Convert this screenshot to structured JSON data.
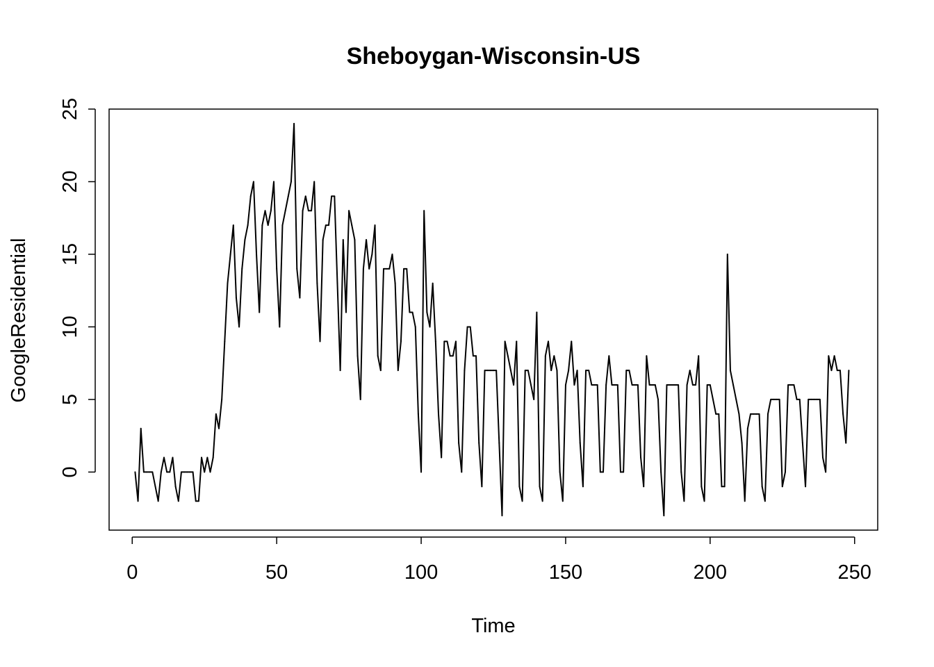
{
  "chart_data": {
    "type": "line",
    "title": "Sheboygan-Wisconsin-US",
    "xlabel": "Time",
    "ylabel": "GoogleResidential",
    "xlim": [
      -8,
      258
    ],
    "ylim": [
      -4,
      25
    ],
    "x_ticks": [
      0,
      50,
      100,
      150,
      200,
      250
    ],
    "y_ticks": [
      0,
      5,
      10,
      15,
      20,
      25
    ],
    "x_tick_labels": [
      "0",
      "50",
      "100",
      "150",
      "200",
      "250"
    ],
    "y_tick_labels": [
      "0",
      "5",
      "10",
      "15",
      "20",
      "25"
    ],
    "grid": false,
    "x_start": 1,
    "line_color": "#000000",
    "values": [
      0,
      -2,
      3,
      0,
      0,
      0,
      0,
      -1,
      -2,
      0,
      1,
      0,
      0,
      1,
      -1,
      -2,
      0,
      0,
      0,
      0,
      0,
      -2,
      -2,
      1,
      0,
      1,
      0,
      1,
      4,
      3,
      5,
      9,
      13,
      15,
      17,
      12,
      10,
      14,
      16,
      17,
      19,
      20,
      15,
      11,
      17,
      18,
      17,
      18,
      20,
      14,
      10,
      17,
      18,
      19,
      20,
      24,
      14,
      12,
      18,
      19,
      18,
      18,
      20,
      13,
      9,
      16,
      17,
      17,
      19,
      19,
      13,
      7,
      16,
      11,
      18,
      17,
      16,
      8,
      5,
      14,
      16,
      14,
      15,
      17,
      8,
      7,
      14,
      14,
      14,
      15,
      13,
      7,
      9,
      14,
      14,
      11,
      11,
      10,
      4,
      0,
      18,
      11,
      10,
      13,
      9,
      4,
      1,
      9,
      9,
      8,
      8,
      9,
      2,
      0,
      7,
      10,
      10,
      8,
      8,
      2,
      -1,
      7,
      7,
      7,
      7,
      7,
      2,
      -3,
      9,
      8,
      7,
      6,
      9,
      -1,
      -2,
      7,
      7,
      6,
      5,
      11,
      -1,
      -2,
      8,
      9,
      7,
      8,
      7,
      0,
      -2,
      6,
      7,
      9,
      6,
      7,
      2,
      -1,
      7,
      7,
      6,
      6,
      6,
      0,
      0,
      6,
      8,
      6,
      6,
      6,
      0,
      0,
      7,
      7,
      6,
      6,
      6,
      1,
      -1,
      8,
      6,
      6,
      6,
      5,
      0,
      -3,
      6,
      6,
      6,
      6,
      6,
      0,
      -2,
      6,
      7,
      6,
      6,
      8,
      -1,
      -2,
      6,
      6,
      5,
      4,
      4,
      -1,
      -1,
      15,
      7,
      6,
      5,
      4,
      2,
      -2,
      3,
      4,
      4,
      4,
      4,
      -1,
      -2,
      4,
      5,
      5,
      5,
      5,
      -1,
      0,
      6,
      6,
      6,
      5,
      5,
      2,
      -1,
      5,
      5,
      5,
      5,
      5,
      1,
      0,
      8,
      7,
      8,
      7,
      7,
      4,
      2,
      7
    ]
  }
}
